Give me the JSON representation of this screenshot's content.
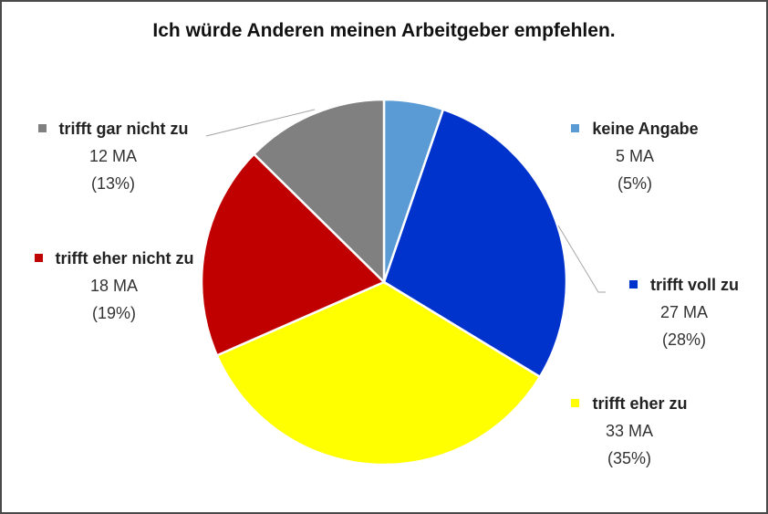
{
  "chart_data": {
    "type": "pie",
    "title": "Ich würde Anderen meinen Arbeitgeber empfehlen.",
    "slices": [
      {
        "label": "keine Angabe",
        "count_text": "5 MA",
        "pct_text": "(5%)",
        "value": 5,
        "color": "#5b9bd5"
      },
      {
        "label": "trifft voll zu",
        "count_text": "27 MA",
        "pct_text": "(28%)",
        "value": 27,
        "color": "#0033cc"
      },
      {
        "label": "trifft eher zu",
        "count_text": "33 MA",
        "pct_text": "(35%)",
        "value": 33,
        "color": "#ffff00"
      },
      {
        "label": "trifft eher nicht zu",
        "count_text": "18 MA",
        "pct_text": "(19%)",
        "value": 18,
        "color": "#c00000"
      },
      {
        "label": "trifft gar nicht zu",
        "count_text": "12 MA",
        "pct_text": "(13%)",
        "value": 12,
        "color": "#808080"
      }
    ],
    "start_angle": "12 o'clock",
    "direction": "clockwise",
    "legend": "data labels beside slices"
  }
}
